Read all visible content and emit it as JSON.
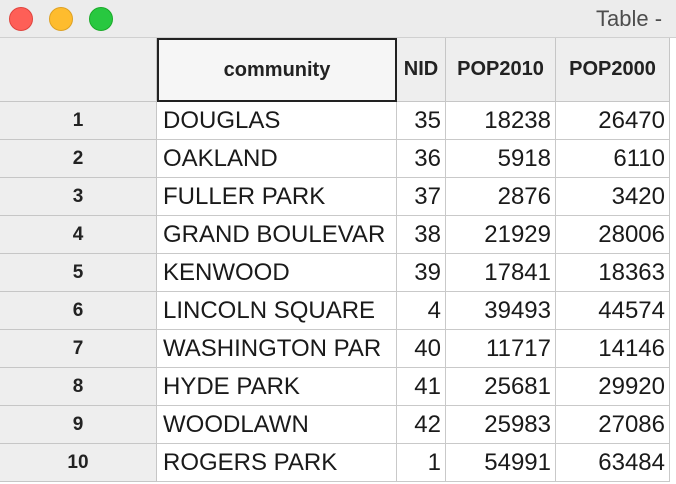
{
  "window": {
    "title": "Table -",
    "buttons": {
      "close_color": "#fe5f57",
      "minimize_color": "#febc2e",
      "zoom_color": "#28c840"
    }
  },
  "table": {
    "columns": [
      {
        "key": "community",
        "label": "community",
        "align": "left",
        "selected": true
      },
      {
        "key": "nid",
        "label": "NID",
        "align": "right"
      },
      {
        "key": "pop2010",
        "label": "POP2010",
        "align": "right"
      },
      {
        "key": "pop2000",
        "label": "POP2000",
        "align": "right"
      }
    ],
    "rows": [
      {
        "index": "1",
        "community": "DOUGLAS",
        "nid": "35",
        "pop2010": "18238",
        "pop2000": "26470"
      },
      {
        "index": "2",
        "community": "OAKLAND",
        "nid": "36",
        "pop2010": "5918",
        "pop2000": "6110"
      },
      {
        "index": "3",
        "community": "FULLER PARK",
        "nid": "37",
        "pop2010": "2876",
        "pop2000": "3420"
      },
      {
        "index": "4",
        "community": "GRAND BOULEVAR",
        "nid": "38",
        "pop2010": "21929",
        "pop2000": "28006"
      },
      {
        "index": "5",
        "community": "KENWOOD",
        "nid": "39",
        "pop2010": "17841",
        "pop2000": "18363"
      },
      {
        "index": "6",
        "community": "LINCOLN SQUARE",
        "nid": "4",
        "pop2010": "39493",
        "pop2000": "44574"
      },
      {
        "index": "7",
        "community": "WASHINGTON PAR",
        "nid": "40",
        "pop2010": "11717",
        "pop2000": "14146"
      },
      {
        "index": "8",
        "community": "HYDE PARK",
        "nid": "41",
        "pop2010": "25681",
        "pop2000": "29920"
      },
      {
        "index": "9",
        "community": "WOODLAWN",
        "nid": "42",
        "pop2010": "25983",
        "pop2000": "27086"
      },
      {
        "index": "10",
        "community": "ROGERS PARK",
        "nid": "1",
        "pop2010": "54991",
        "pop2000": "63484"
      }
    ]
  }
}
